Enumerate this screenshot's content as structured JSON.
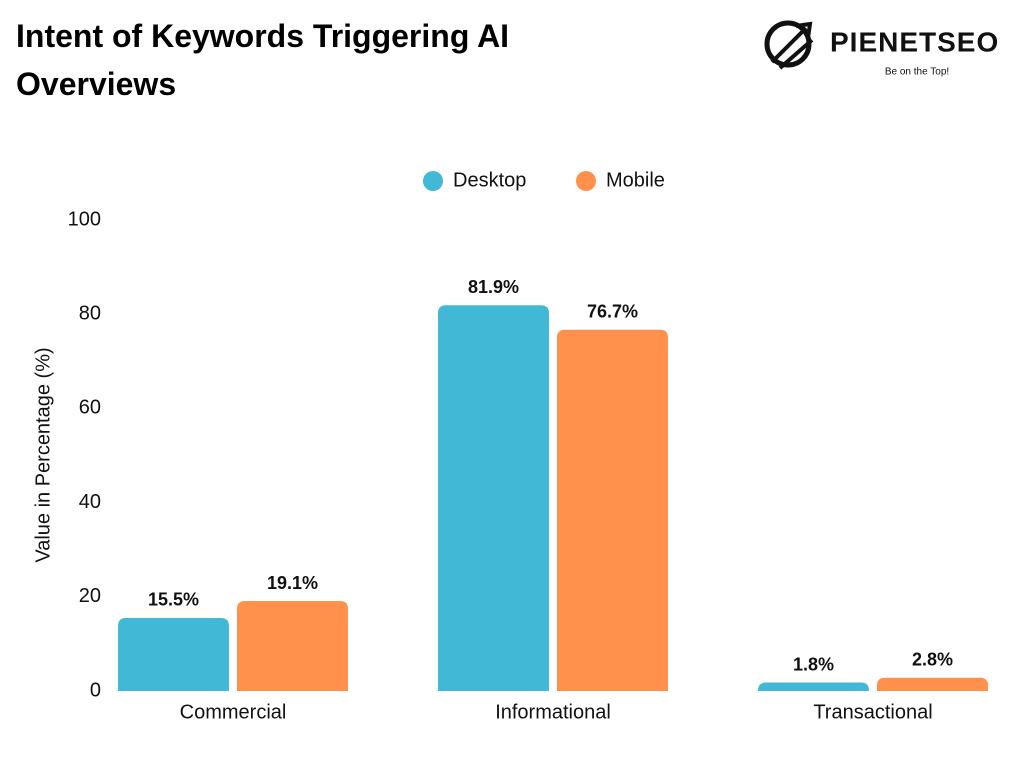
{
  "chart_data": {
    "type": "bar",
    "title": "Intent of Keywords Triggering AI Overviews",
    "y_label": "Value in Percentage (%)",
    "categories": [
      "Commercial",
      "Informational",
      "Transactional"
    ],
    "series": [
      {
        "name": "Desktop",
        "color": "#41b8d5",
        "values": [
          15.5,
          81.9,
          1.8
        ],
        "value_labels": [
          "15.5%",
          "81.9%",
          "1.8%"
        ]
      },
      {
        "name": "Mobile",
        "color": "#ff914d",
        "values": [
          19.1,
          76.7,
          2.8
        ],
        "value_labels": [
          "19.1%",
          "76.7%",
          "2.8%"
        ]
      }
    ],
    "ylim": [
      0,
      100
    ],
    "yticks": [
      0,
      20,
      40,
      60,
      80,
      100
    ],
    "grid": false,
    "legend": "top"
  },
  "logo": {
    "name": "PIENETSEO",
    "tagline": "Be on the Top!"
  }
}
